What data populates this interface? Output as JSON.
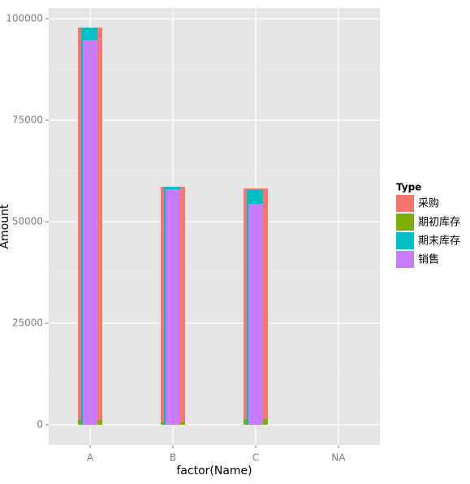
{
  "chart_data": {
    "type": "bar",
    "x_label": "factor(Name)",
    "y_label": "Amount",
    "legend_title": "Type",
    "categories": [
      "A",
      "B",
      "C",
      "NA"
    ],
    "series": [
      {
        "name": "采购",
        "color": "#f8766d",
        "values": [
          97800,
          58600,
          58200,
          null
        ]
      },
      {
        "name": "期初库存",
        "color": "#7cae00",
        "values": [
          1200,
          600,
          1400,
          null
        ]
      },
      {
        "name": "期末库存",
        "color": "#00bfc4",
        "values": [
          97800,
          58600,
          57800,
          null
        ]
      },
      {
        "name": "销售",
        "color": "#c77cff",
        "values": [
          94800,
          58000,
          54400,
          null
        ]
      }
    ],
    "ylim": [
      -5000,
      102600
    ],
    "yticks": [
      0,
      25000,
      50000,
      75000,
      100000
    ],
    "grid": true
  }
}
